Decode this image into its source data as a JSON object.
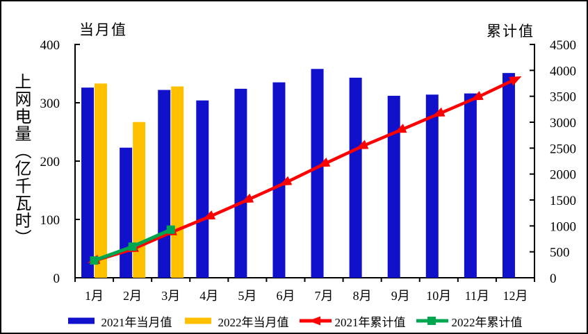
{
  "figure": {
    "background": "#FFFFFF",
    "frame_border_color": "#000000",
    "axis_color": "#000000"
  },
  "chart_data": {
    "type": "combo",
    "grid": false,
    "legend_position": "bottom",
    "plot_background": "#FFFFFF",
    "y_axis_label": "上网电量（亿千瓦时）",
    "categories": [
      "1月",
      "2月",
      "3月",
      "4月",
      "5月",
      "6月",
      "7月",
      "8月",
      "9月",
      "10月",
      "11月",
      "12月"
    ],
    "left_axis": {
      "title": "当月值",
      "min": 0,
      "max": 400,
      "step": 100,
      "tick_labels": [
        "0",
        "100",
        "200",
        "300",
        "400"
      ]
    },
    "right_axis": {
      "title": "累计值",
      "min": 0,
      "max": 4500,
      "step": 500,
      "tick_labels": [
        "0",
        "500",
        "1000",
        "1500",
        "2000",
        "2500",
        "3000",
        "3500",
        "4000",
        "4500"
      ]
    },
    "series": [
      {
        "name": "2021年当月值",
        "kind": "bar",
        "axis": "left",
        "color": "#1111CC",
        "marker": "none",
        "values": [
          326,
          223,
          322,
          304,
          324,
          335,
          358,
          343,
          312,
          314,
          316,
          351
        ]
      },
      {
        "name": "2022年当月值",
        "kind": "bar",
        "axis": "left",
        "color": "#FFC000",
        "marker": "none",
        "values": [
          333,
          267,
          328
        ]
      },
      {
        "name": "2021年累计值",
        "kind": "line",
        "axis": "right",
        "color": "#FF0000",
        "marker": "triangle",
        "values": [
          326,
          549,
          871,
          1175,
          1499,
          1834,
          2192,
          2535,
          2847,
          3161,
          3477,
          3828
        ]
      },
      {
        "name": "2022年累计值",
        "kind": "line",
        "axis": "right",
        "color": "#00A550",
        "marker": "square",
        "values": [
          333,
          600,
          928
        ]
      }
    ]
  }
}
